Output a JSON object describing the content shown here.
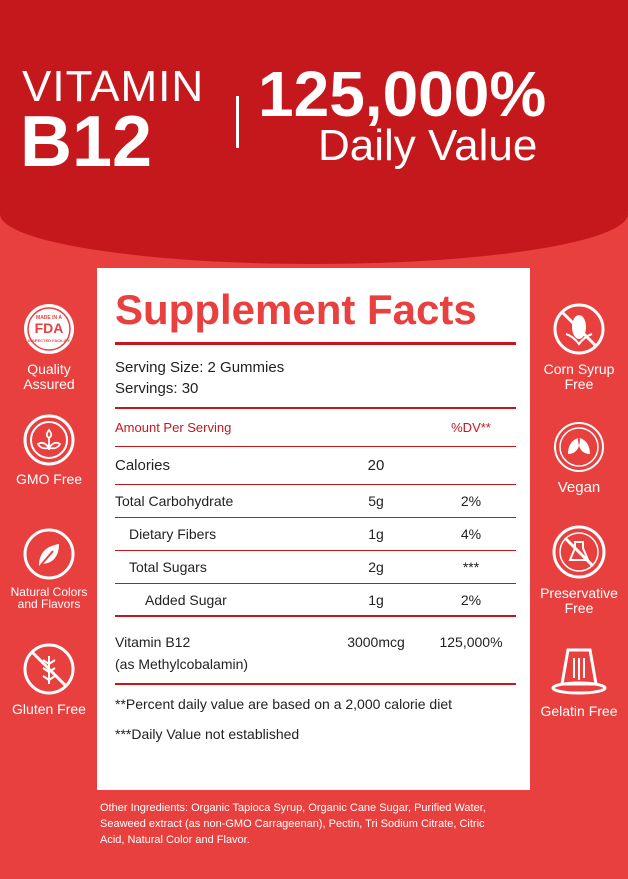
{
  "header": {
    "vitamin": "VITAMIN",
    "b12": "B12",
    "percent": "125,000%",
    "daily_value": "Daily Value"
  },
  "facts": {
    "title": "Supplement Facts",
    "serving_size": "Serving Size: 2 Gummies",
    "servings": "Servings: 30",
    "amount_label": "Amount Per Serving",
    "dv_label": "%DV**",
    "calories": {
      "name": "Calories",
      "amount": "20"
    },
    "rows": [
      {
        "name": "Total Carbohydrate",
        "amount": "5g",
        "dv": "2%"
      },
      {
        "name": "Dietary Fibers",
        "amount": "1g",
        "dv": "4%"
      },
      {
        "name": "Total Sugars",
        "amount": "2g",
        "dv": "***"
      },
      {
        "name": "Added Sugar",
        "amount": "1g",
        "dv": "2%"
      }
    ],
    "b12": {
      "name": "Vitamin B12",
      "form": "(as Methylcobalamin)",
      "amount": "3000mcg",
      "dv": "125,000%"
    },
    "footnote1": "**Percent daily value are based on a 2,000 calorie diet",
    "footnote2": "***Daily Value not established"
  },
  "other_ingredients": "Other Ingredients: Organic Tapioca Syrup, Organic Cane Sugar, Purified Water, Seaweed extract (as non-GMO Carrageenan), Pectin, Tri Sodium Citrate, Citric Acid, Natural Color and Flavor.",
  "badges_left": [
    {
      "icon": "fda-seal-icon",
      "seal_top": "MADE IN A",
      "seal_mid": "FDA",
      "seal_bottom": "INSPECTED FACILITY",
      "label": "Quality Assured"
    },
    {
      "icon": "sprout-icon",
      "label": "GMO Free"
    },
    {
      "icon": "leaf-icon",
      "label": "Natural Colors and Flavors"
    },
    {
      "icon": "no-wheat-icon",
      "label": "Gluten Free"
    }
  ],
  "badges_right": [
    {
      "icon": "no-corn-icon",
      "label": "Corn Syrup Free"
    },
    {
      "icon": "vegan-leaf-icon",
      "label": "Vegan"
    },
    {
      "icon": "no-flask-icon",
      "label": "Preservative Free"
    },
    {
      "icon": "jelly-icon",
      "label": "Gelatin Free"
    }
  ],
  "colors": {
    "dark_red": "#c5181d",
    "red": "#e8403f"
  }
}
